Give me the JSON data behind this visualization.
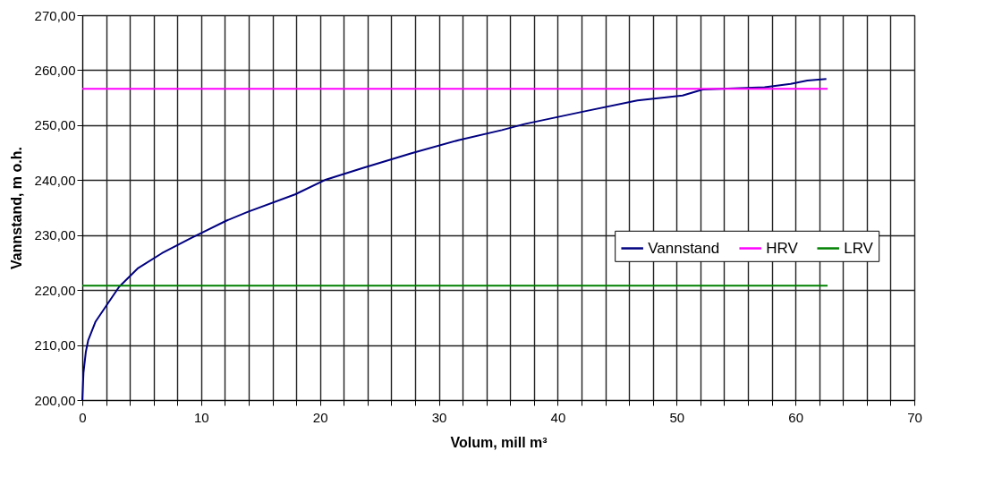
{
  "chart_data": {
    "type": "line",
    "xlabel": "Volum, mill m³",
    "ylabel": "Vannstand, m o.h.",
    "xlim": [
      0,
      70
    ],
    "ylim": [
      200,
      270
    ],
    "xticks": [
      0,
      {
        "value": 2,
        "label": null
      },
      {
        "value": 4,
        "label": null
      },
      {
        "value": 6,
        "label": null
      },
      {
        "value": 8,
        "label": null
      },
      10,
      {
        "value": 12,
        "label": null
      },
      {
        "value": 14,
        "label": null
      },
      {
        "value": 16,
        "label": null
      },
      {
        "value": 18,
        "label": null
      },
      20,
      {
        "value": 22,
        "label": null
      },
      {
        "value": 24,
        "label": null
      },
      {
        "value": 26,
        "label": null
      },
      {
        "value": 28,
        "label": null
      },
      30,
      {
        "value": 32,
        "label": null
      },
      {
        "value": 34,
        "label": null
      },
      {
        "value": 36,
        "label": null
      },
      {
        "value": 38,
        "label": null
      },
      40,
      {
        "value": 42,
        "label": null
      },
      {
        "value": 44,
        "label": null
      },
      {
        "value": 46,
        "label": null
      },
      {
        "value": 48,
        "label": null
      },
      50,
      {
        "value": 52,
        "label": null
      },
      {
        "value": 54,
        "label": null
      },
      {
        "value": 56,
        "label": null
      },
      {
        "value": 58,
        "label": null
      },
      60,
      {
        "value": 62,
        "label": null
      },
      {
        "value": 64,
        "label": null
      },
      {
        "value": 66,
        "label": null
      },
      {
        "value": 68,
        "label": null
      },
      70
    ],
    "yticks": [
      {
        "value": 200,
        "label": "200,00"
      },
      {
        "value": 210,
        "label": "210,00"
      },
      {
        "value": 220,
        "label": "220,00"
      },
      {
        "value": 230,
        "label": "230,00"
      },
      {
        "value": 240,
        "label": "240,00"
      },
      {
        "value": 250,
        "label": "250,00"
      },
      {
        "value": 260,
        "label": "260,00"
      },
      {
        "value": 270,
        "label": "270,00"
      }
    ],
    "grid": true,
    "legend": "right",
    "line_style": "solid",
    "marker": "none",
    "series": [
      {
        "name": "Vannstand",
        "color": "#000080",
        "x": [
          0,
          0.1,
          0.3,
          0.5,
          1.1,
          2,
          3.1,
          4.7,
          6.7,
          9.1,
          12.1,
          13.9,
          17.9,
          20.5,
          23.6,
          27.7,
          31.7,
          35.3,
          37.2,
          42,
          46.7,
          50.5,
          52.2,
          57.4,
          59.6,
          61,
          62.6
        ],
        "values": [
          200,
          205,
          208.8,
          210.9,
          214.2,
          217.1,
          220.6,
          224,
          226.7,
          229.4,
          232.6,
          234.2,
          237.4,
          240.1,
          242.2,
          244.9,
          247.3,
          249.1,
          250.2,
          252.4,
          254.5,
          255.4,
          256.5,
          256.9,
          257.5,
          258.1,
          258.4
        ]
      },
      {
        "name": "HRV",
        "color": "#ff00ff",
        "x": [
          0,
          62.7
        ],
        "values": [
          256.6,
          256.6
        ]
      },
      {
        "name": "LRV",
        "color": "#008000",
        "x": [
          0,
          62.7
        ],
        "values": [
          220.8,
          220.8
        ]
      }
    ]
  }
}
